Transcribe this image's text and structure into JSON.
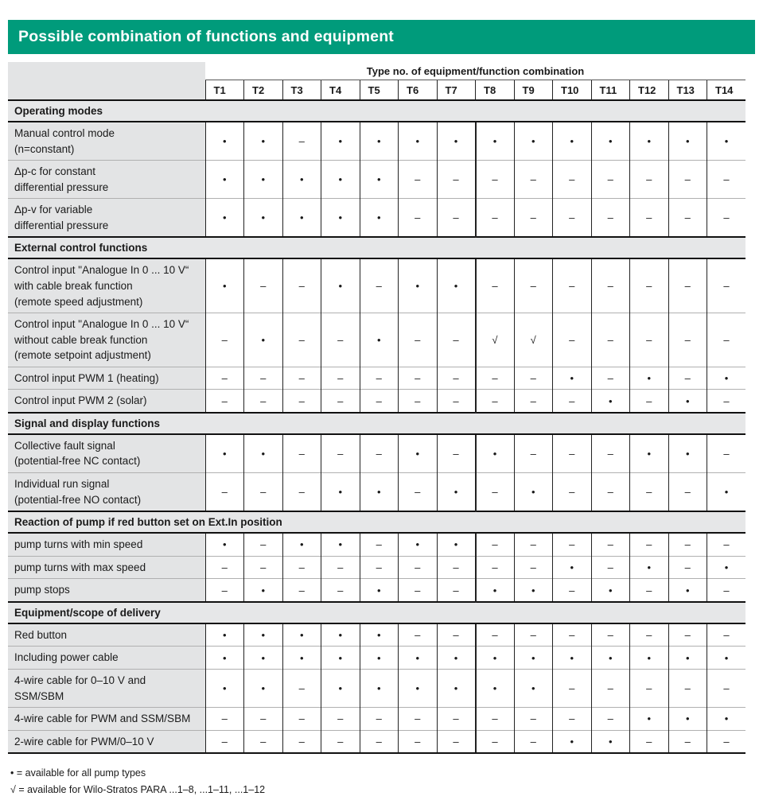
{
  "title": "Possible combination of functions and equipment",
  "accent_color": "#009B7B",
  "table": {
    "group_header": "Type no. of equipment/function combination",
    "columns": [
      "T1",
      "T2",
      "T3",
      "T4",
      "T5",
      "T6",
      "T7",
      "T8",
      "T9",
      "T10",
      "T11",
      "T12",
      "T13",
      "T14"
    ],
    "symbols": {
      "available": "•",
      "not_available": "–",
      "available_para": "√"
    },
    "sections": [
      {
        "heading": "Operating modes",
        "rows": [
          {
            "label": "Manual control mode\n(n=constant)",
            "values": [
              "•",
              "•",
              "–",
              "•",
              "•",
              "•",
              "•",
              "•",
              "•",
              "•",
              "•",
              "•",
              "•",
              "•"
            ]
          },
          {
            "label": "Δp-c for constant\ndifferential pressure",
            "values": [
              "•",
              "•",
              "•",
              "•",
              "•",
              "–",
              "–",
              "–",
              "–",
              "–",
              "–",
              "–",
              "–",
              "–"
            ]
          },
          {
            "label": "Δp-v for variable\ndifferential pressure",
            "values": [
              "•",
              "•",
              "•",
              "•",
              "•",
              "–",
              "–",
              "–",
              "–",
              "–",
              "–",
              "–",
              "–",
              "–"
            ]
          }
        ]
      },
      {
        "heading": "External control functions",
        "rows": [
          {
            "label": "Control input \"Analogue In 0 ... 10 V“\nwith cable break function\n(remote speed adjustment)",
            "values": [
              "•",
              "–",
              "–",
              "•",
              "–",
              "•",
              "•",
              "–",
              "–",
              "–",
              "–",
              "–",
              "–",
              "–"
            ]
          },
          {
            "label": "Control input \"Analogue In 0 ... 10 V“\nwithout cable break function\n(remote setpoint adjustment)",
            "values": [
              "–",
              "•",
              "–",
              "–",
              "•",
              "–",
              "–",
              "√",
              "√",
              "–",
              "–",
              "–",
              "–",
              "–"
            ]
          },
          {
            "label": "Control input PWM 1 (heating)",
            "values": [
              "–",
              "–",
              "–",
              "–",
              "–",
              "–",
              "–",
              "–",
              "–",
              "•",
              "–",
              "•",
              "–",
              "•"
            ]
          },
          {
            "label": "Control input PWM 2 (solar)",
            "values": [
              "–",
              "–",
              "–",
              "–",
              "–",
              "–",
              "–",
              "–",
              "–",
              "–",
              "•",
              "–",
              "•",
              "–"
            ]
          }
        ]
      },
      {
        "heading": "Signal and display functions",
        "rows": [
          {
            "label": "Collective fault signal\n(potential-free NC contact)",
            "values": [
              "•",
              "•",
              "–",
              "–",
              "–",
              "•",
              "–",
              "•",
              "–",
              "–",
              "–",
              "•",
              "•",
              "–"
            ]
          },
          {
            "label": "Individual run signal\n(potential-free NO contact)",
            "values": [
              "–",
              "–",
              "–",
              "•",
              "•",
              "–",
              "•",
              "–",
              "•",
              "–",
              "–",
              "–",
              "–",
              "•"
            ]
          }
        ]
      },
      {
        "heading": "Reaction of pump if red button set on Ext.In position",
        "rows": [
          {
            "label": "pump turns with min speed",
            "values": [
              "•",
              "–",
              "•",
              "•",
              "–",
              "•",
              "•",
              "–",
              "–",
              "–",
              "–",
              "–",
              "–",
              "–"
            ]
          },
          {
            "label": "pump turns with max speed",
            "values": [
              "–",
              "–",
              "–",
              "–",
              "–",
              "–",
              "–",
              "–",
              "–",
              "•",
              "–",
              "•",
              "–",
              "•"
            ]
          },
          {
            "label": "pump stops",
            "values": [
              "–",
              "•",
              "–",
              "–",
              "•",
              "–",
              "–",
              "•",
              "•",
              "–",
              "•",
              "–",
              "•",
              "–"
            ]
          }
        ]
      },
      {
        "heading": "Equipment/scope of delivery",
        "rows": [
          {
            "label": "Red button",
            "values": [
              "•",
              "•",
              "•",
              "•",
              "•",
              "–",
              "–",
              "–",
              "–",
              "–",
              "–",
              "–",
              "–",
              "–"
            ]
          },
          {
            "label": "Including power cable",
            "values": [
              "•",
              "•",
              "•",
              "•",
              "•",
              "•",
              "•",
              "•",
              "•",
              "•",
              "•",
              "•",
              "•",
              "•"
            ]
          },
          {
            "label": "4-wire cable for 0–10 V and\nSSM/SBM",
            "values": [
              "•",
              "•",
              "–",
              "•",
              "•",
              "•",
              "•",
              "•",
              "•",
              "–",
              "–",
              "–",
              "–",
              "–"
            ]
          },
          {
            "label": "4-wire cable for PWM and SSM/SBM",
            "values": [
              "–",
              "–",
              "–",
              "–",
              "–",
              "–",
              "–",
              "–",
              "–",
              "–",
              "–",
              "•",
              "•",
              "•"
            ]
          },
          {
            "label": "2-wire cable for PWM/0–10 V",
            "values": [
              "–",
              "–",
              "–",
              "–",
              "–",
              "–",
              "–",
              "–",
              "–",
              "•",
              "•",
              "–",
              "–",
              "–"
            ]
          }
        ]
      }
    ]
  },
  "legend": [
    "• = available for all pump types",
    "√ = available for Wilo-Stratos PARA ...1–8, ...1–11, ...1–12"
  ]
}
